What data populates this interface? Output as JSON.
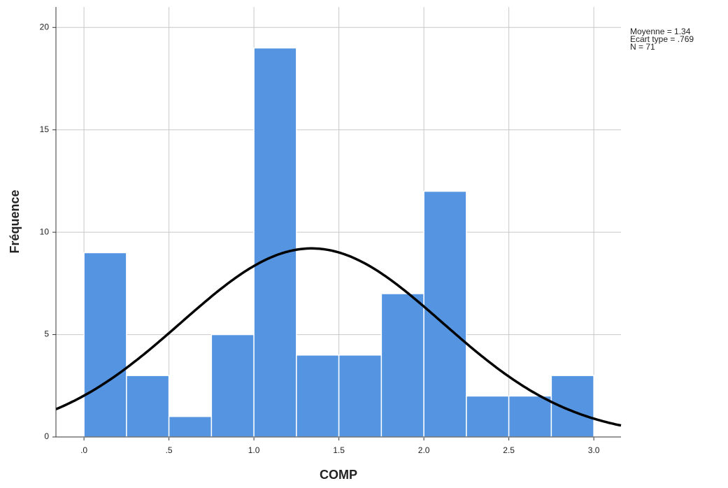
{
  "chart_data": {
    "type": "histogram",
    "x_label": "COMP",
    "y_label": "Fréquence",
    "bins": [
      0,
      0.25,
      0.5,
      0.75,
      1.0,
      1.25,
      1.5,
      1.75,
      2.0,
      2.25,
      2.5,
      2.75,
      3.0
    ],
    "values": [
      9,
      3,
      1,
      5,
      19,
      4,
      4,
      7,
      12,
      2,
      2,
      3
    ],
    "color": "#5594e0",
    "xlim": [
      -0.165,
      3.16
    ],
    "ylim": [
      0,
      21
    ],
    "xticks": [
      {
        "value": 0,
        "label": ".0"
      },
      {
        "value": 0.5,
        "label": ".5"
      },
      {
        "value": 1.0,
        "label": "1.0"
      },
      1.5,
      {
        "value": 2.0,
        "label": "2.0"
      },
      2.5,
      {
        "value": 3.0,
        "label": "3.0"
      }
    ],
    "yticks": [
      0,
      5,
      10,
      15,
      20
    ],
    "grid": true,
    "stats": [
      "Moyenne = 1.34",
      "Ecart type = .769",
      "N = 71"
    ],
    "normal_curve": {
      "mean": 1.34,
      "sd": 0.769,
      "n": 71,
      "color": "#000000"
    }
  }
}
